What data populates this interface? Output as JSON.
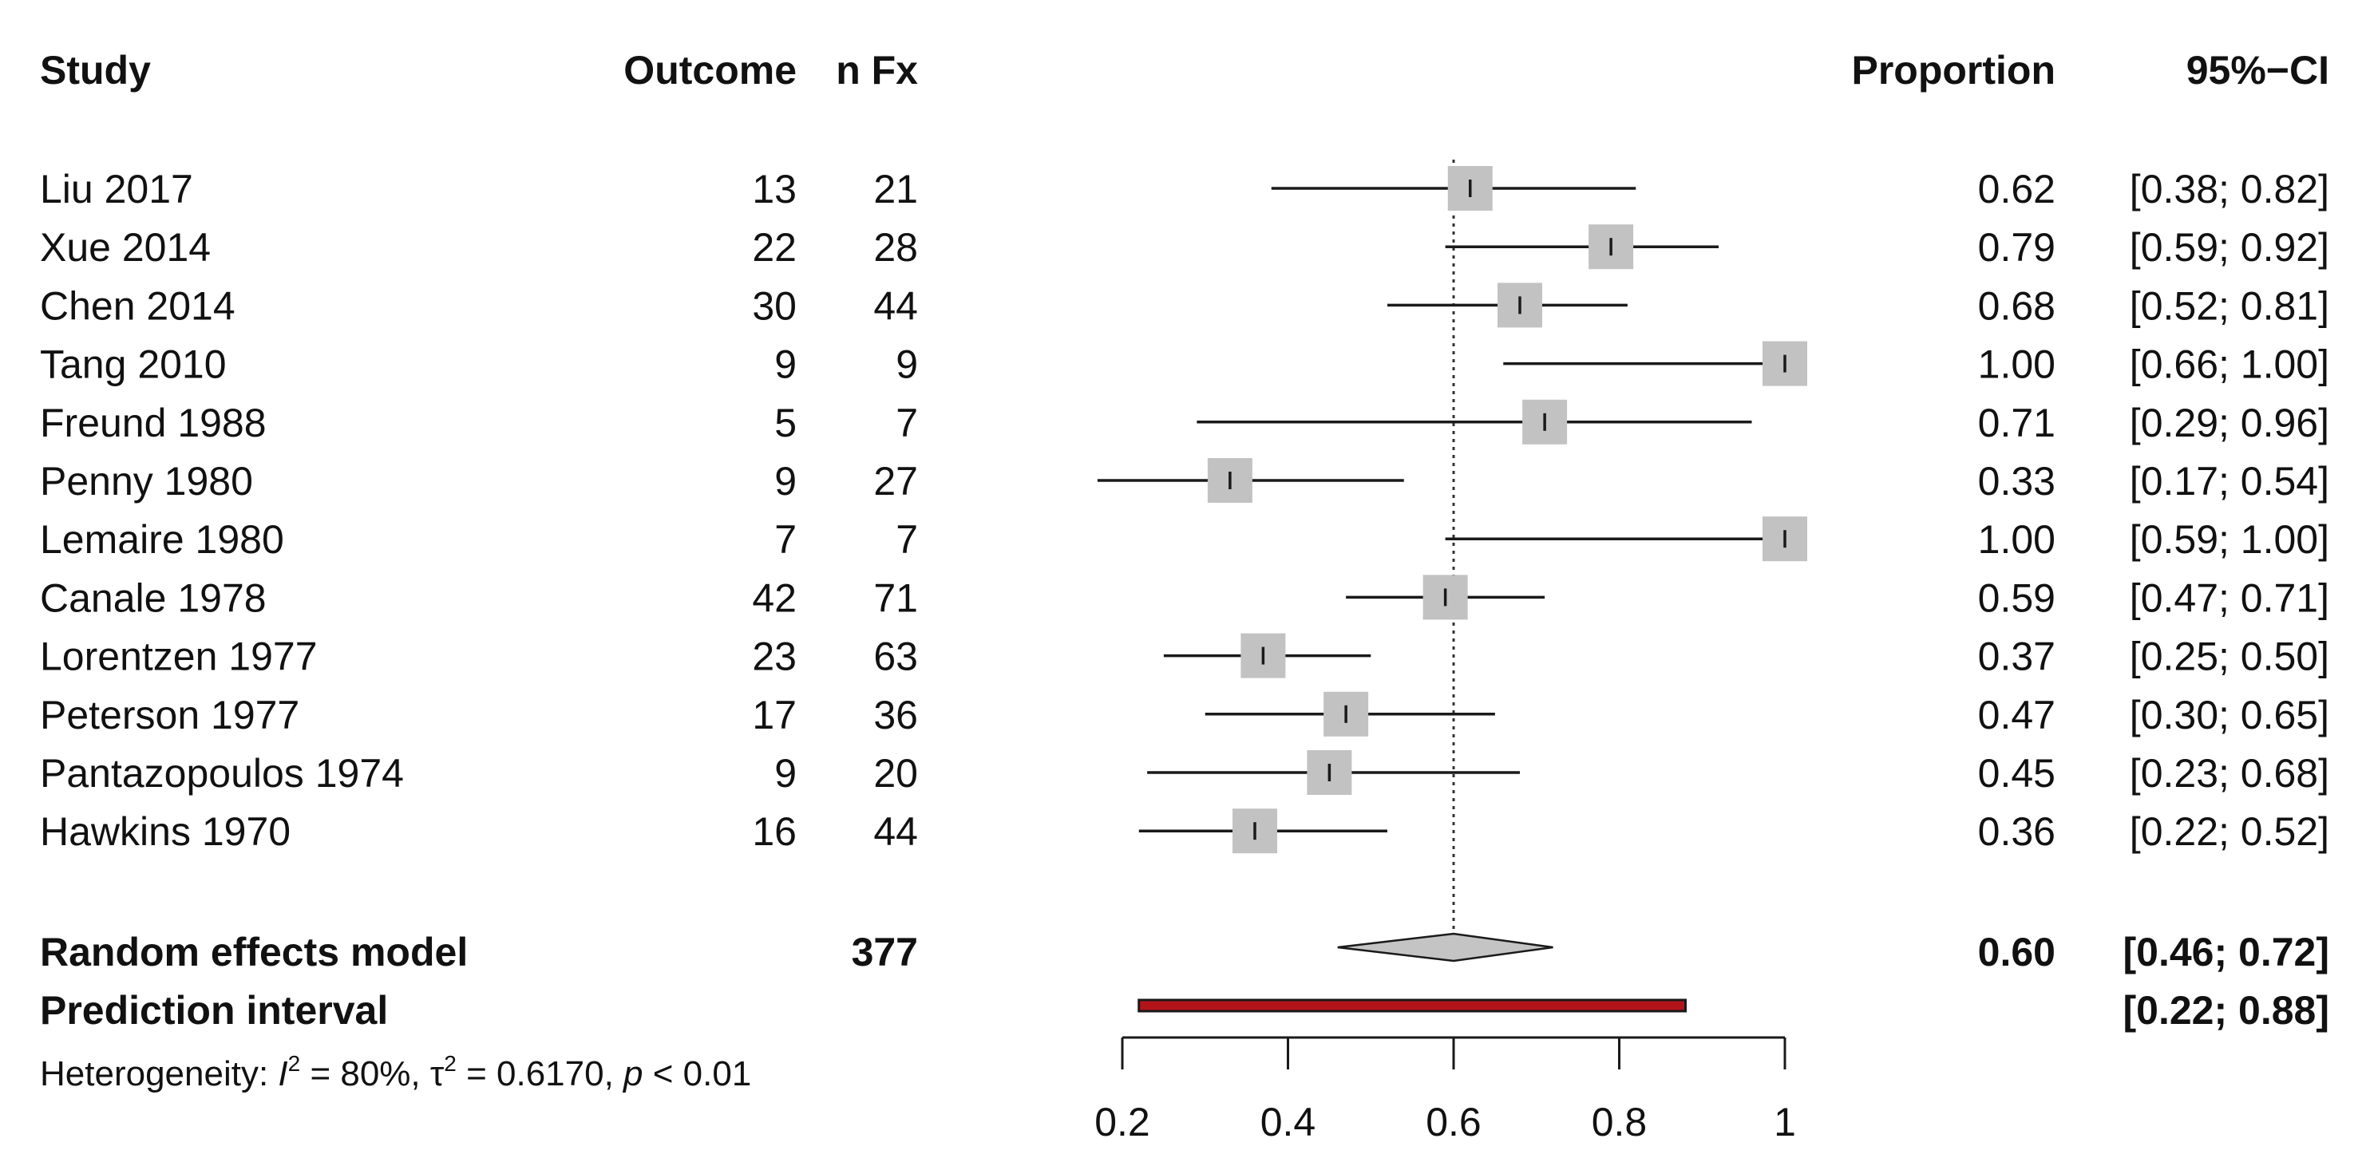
{
  "chart_data": {
    "type": "forest",
    "columns": {
      "study": "Study",
      "outcome": "Outcome",
      "n": "n Fx",
      "proportion": "Proportion",
      "ci": "95%−CI"
    },
    "studies": [
      {
        "name": "Liu 2017",
        "events": "13",
        "total": "21",
        "prop": 0.62,
        "lo": 0.38,
        "hi": 0.82,
        "prop_text": "0.62",
        "ci_text": "[0.38; 0.82]"
      },
      {
        "name": "Xue 2014",
        "events": "22",
        "total": "28",
        "prop": 0.79,
        "lo": 0.59,
        "hi": 0.92,
        "prop_text": "0.79",
        "ci_text": "[0.59; 0.92]"
      },
      {
        "name": "Chen 2014",
        "events": "30",
        "total": "44",
        "prop": 0.68,
        "lo": 0.52,
        "hi": 0.81,
        "prop_text": "0.68",
        "ci_text": "[0.52; 0.81]"
      },
      {
        "name": "Tang 2010",
        "events": "9",
        "total": "9",
        "prop": 1.0,
        "lo": 0.66,
        "hi": 1.0,
        "prop_text": "1.00",
        "ci_text": "[0.66; 1.00]"
      },
      {
        "name": "Freund 1988",
        "events": "5",
        "total": "7",
        "prop": 0.71,
        "lo": 0.29,
        "hi": 0.96,
        "prop_text": "0.71",
        "ci_text": "[0.29; 0.96]"
      },
      {
        "name": "Penny 1980",
        "events": "9",
        "total": "27",
        "prop": 0.33,
        "lo": 0.17,
        "hi": 0.54,
        "prop_text": "0.33",
        "ci_text": "[0.17; 0.54]"
      },
      {
        "name": "Lemaire 1980",
        "events": "7",
        "total": "7",
        "prop": 1.0,
        "lo": 0.59,
        "hi": 1.0,
        "prop_text": "1.00",
        "ci_text": "[0.59; 1.00]"
      },
      {
        "name": "Canale 1978",
        "events": "42",
        "total": "71",
        "prop": 0.59,
        "lo": 0.47,
        "hi": 0.71,
        "prop_text": "0.59",
        "ci_text": "[0.47; 0.71]"
      },
      {
        "name": "Lorentzen 1977",
        "events": "23",
        "total": "63",
        "prop": 0.37,
        "lo": 0.25,
        "hi": 0.5,
        "prop_text": "0.37",
        "ci_text": "[0.25; 0.50]"
      },
      {
        "name": "Peterson 1977",
        "events": "17",
        "total": "36",
        "prop": 0.47,
        "lo": 0.3,
        "hi": 0.65,
        "prop_text": "0.47",
        "ci_text": "[0.30; 0.65]"
      },
      {
        "name": "Pantazopoulos 1974",
        "events": "9",
        "total": "20",
        "prop": 0.45,
        "lo": 0.23,
        "hi": 0.68,
        "prop_text": "0.45",
        "ci_text": "[0.23; 0.68]"
      },
      {
        "name": "Hawkins 1970",
        "events": "16",
        "total": "44",
        "prop": 0.36,
        "lo": 0.22,
        "hi": 0.52,
        "prop_text": "0.36",
        "ci_text": "[0.22; 0.52]"
      }
    ],
    "random_effects": {
      "label": "Random effects model",
      "total": "377",
      "prop": 0.6,
      "lo": 0.46,
      "hi": 0.72,
      "prop_text": "0.60",
      "ci_text": "[0.46; 0.72]"
    },
    "prediction_interval": {
      "label": "Prediction interval",
      "lo": 0.22,
      "hi": 0.88,
      "ci_text": "[0.22; 0.88]"
    },
    "heterogeneity": {
      "prefix": "Heterogeneity: ",
      "i2_symbol": "I",
      "i2_value": " = 80%, ",
      "tau_symbol": "τ",
      "tau_value": " = 0.6170, ",
      "p_symbol": "p",
      "p_value": " < 0.01",
      "superscript": "2"
    },
    "axis": {
      "min": 0.2,
      "max": 1.0,
      "ticks": [
        0.2,
        0.4,
        0.6,
        0.8,
        1.0
      ],
      "tick_labels": [
        "0.2",
        "0.4",
        "0.6",
        "0.8",
        "1"
      ],
      "reference": 0.6
    },
    "colors": {
      "square": "#c2c2c2",
      "line": "#1a1a1a",
      "diamond": "#c4c4c4",
      "prediction": "#b3141a",
      "reference": "#333333"
    }
  }
}
